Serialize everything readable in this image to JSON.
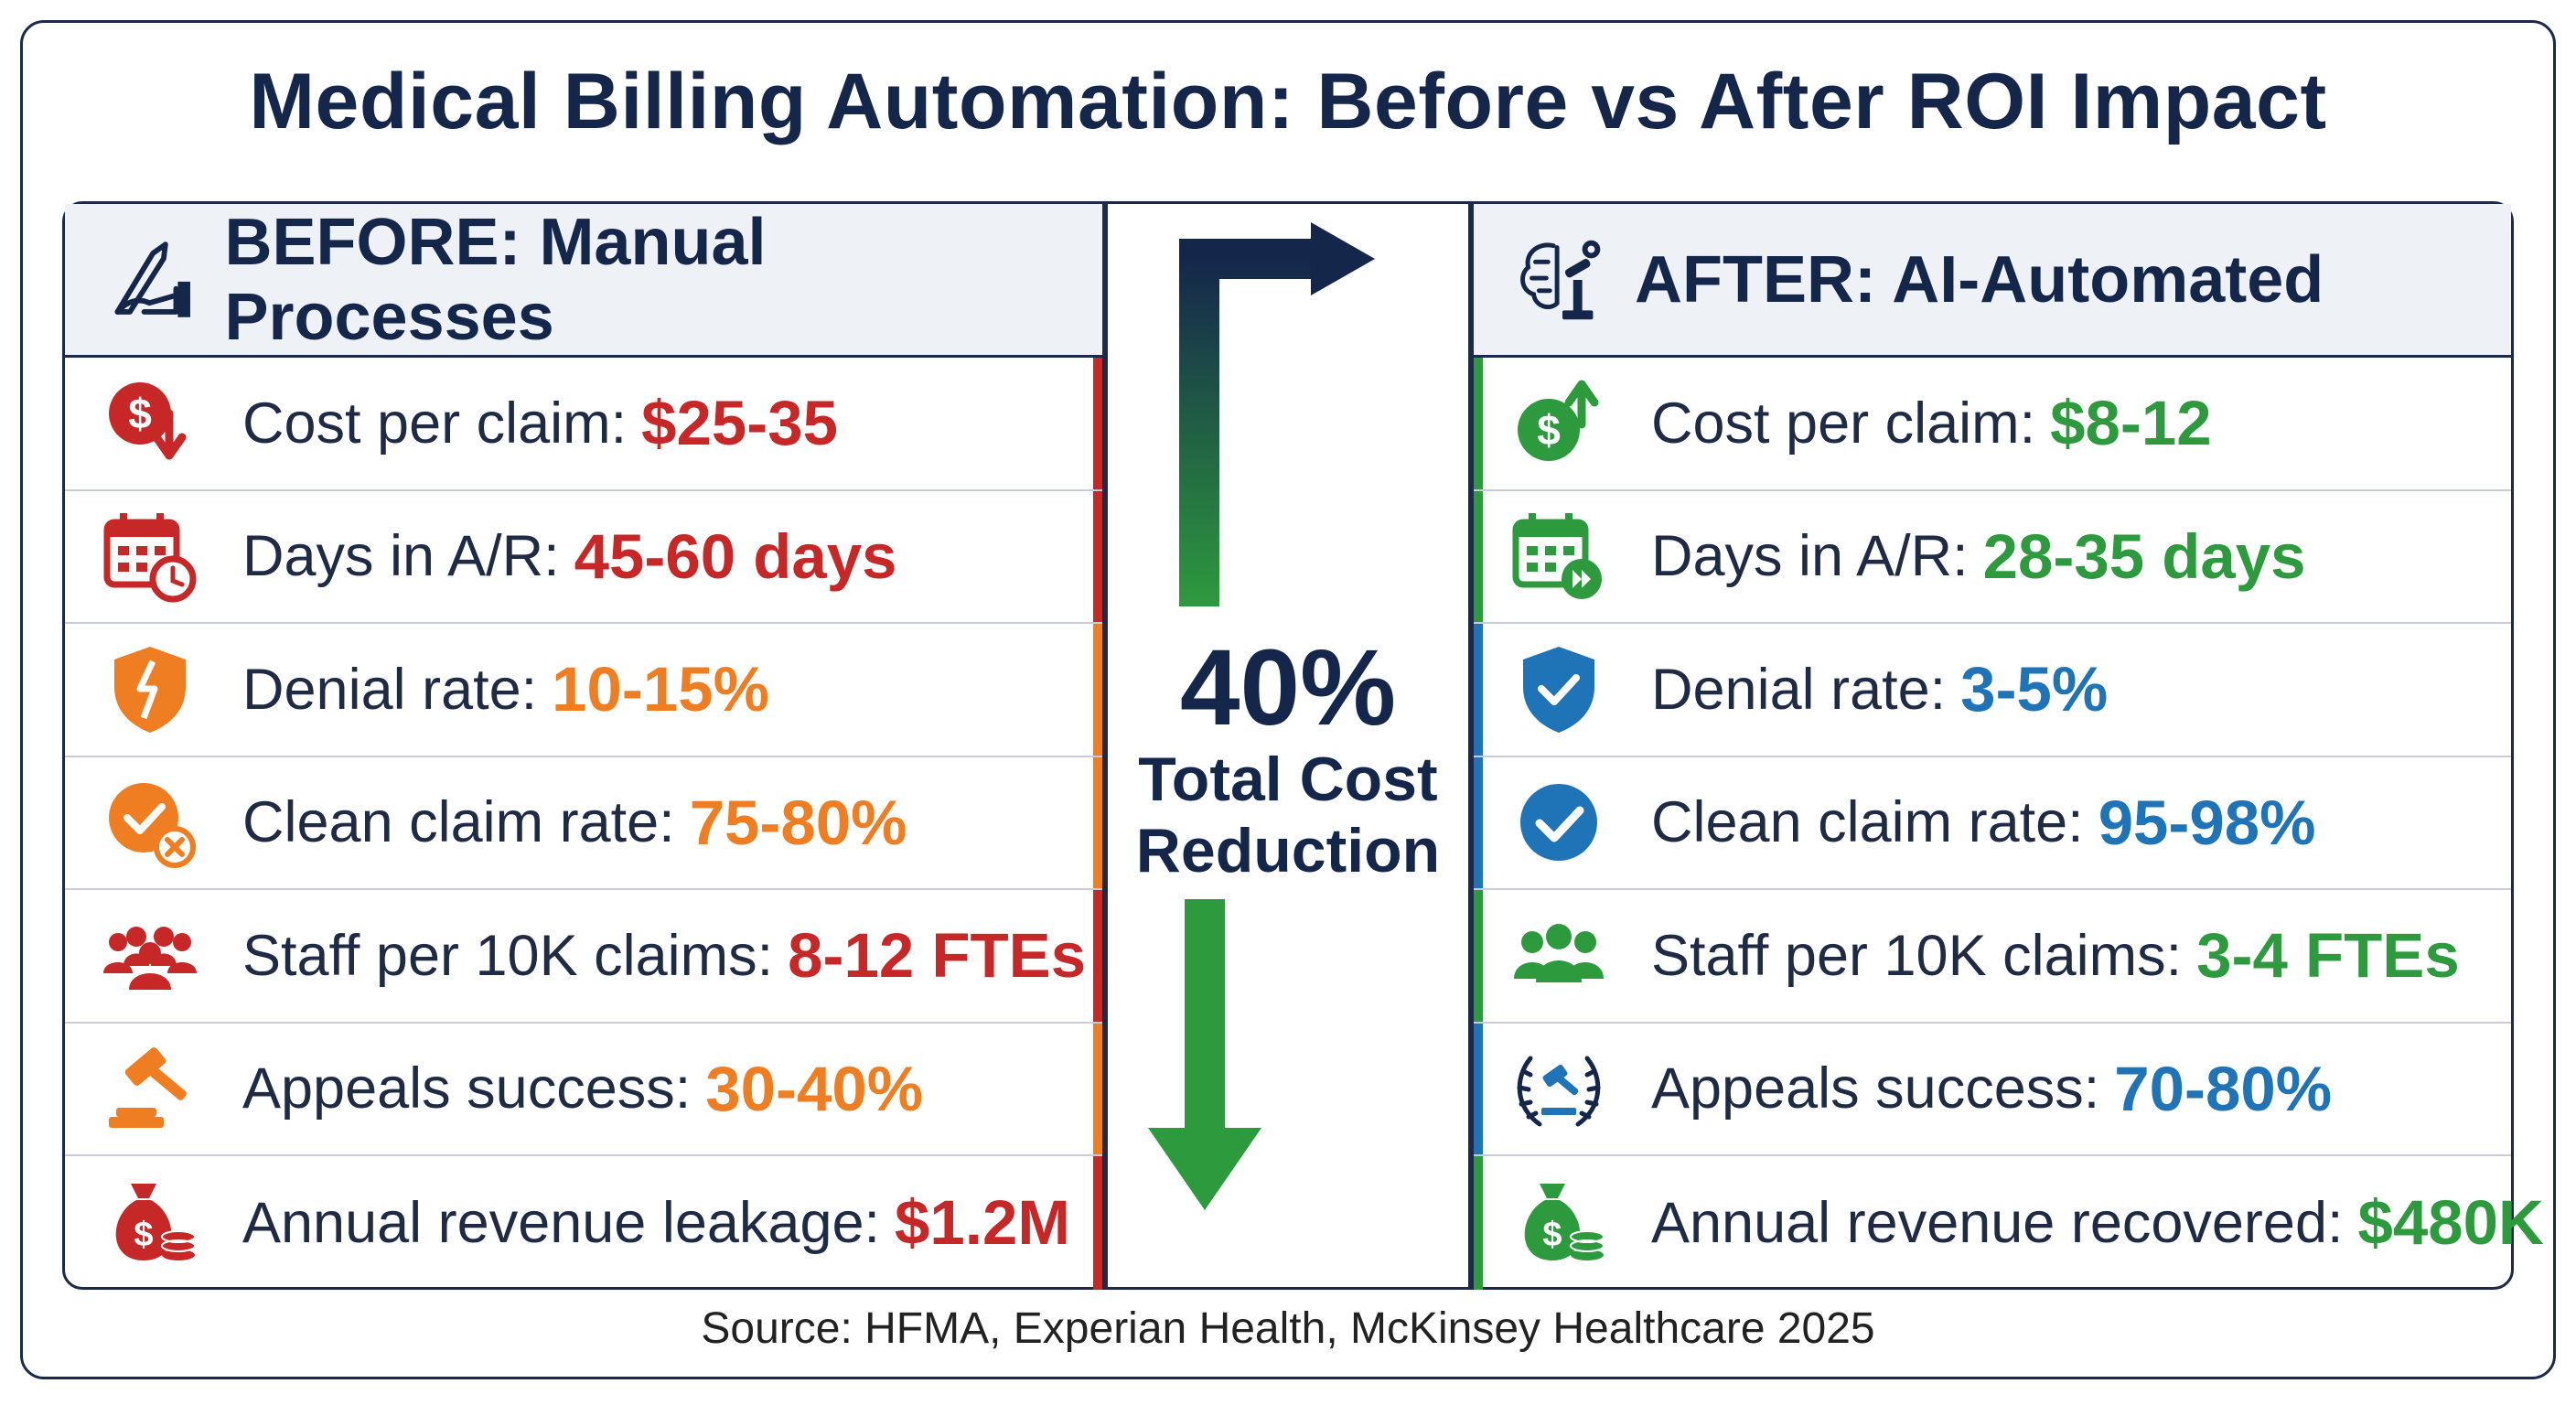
{
  "title": "Medical Billing Automation: Before vs After ROI Impact",
  "source": "Source: HFMA, Experian Health, McKinsey Healthcare 2025",
  "colors": {
    "navy": "#15264b",
    "red": "#c62828",
    "orange": "#ef7d22",
    "green": "#2e9a3e",
    "blue": "#1f73b7"
  },
  "center": {
    "percent": "40%",
    "label_line1": "Total Cost",
    "label_line2": "Reduction"
  },
  "before": {
    "heading": "BEFORE: Manual Processes",
    "icon": "hand-writing-pen-icon",
    "rows": [
      {
        "label": "Cost per claim:",
        "value": "$25-35",
        "color": "red",
        "icon": "dollar-down-icon"
      },
      {
        "label": "Days in A/R:",
        "value": "45-60 days",
        "color": "red",
        "icon": "calendar-clock-icon"
      },
      {
        "label": "Denial rate:",
        "value": "10-15%",
        "color": "orange",
        "icon": "broken-shield-icon"
      },
      {
        "label": "Clean claim rate:",
        "value": "75-80%",
        "color": "orange",
        "icon": "check-x-circle-icon"
      },
      {
        "label": "Staff per 10K claims:",
        "value": "8-12 FTEs",
        "color": "red",
        "icon": "people-group-icon"
      },
      {
        "label": "Appeals success:",
        "value": "30-40%",
        "color": "orange",
        "icon": "gavel-icon"
      },
      {
        "label": "Annual revenue leakage:",
        "value": "$1.2M",
        "color": "red",
        "icon": "money-bag-icon"
      }
    ]
  },
  "after": {
    "heading": "AFTER: AI-Automated",
    "icon": "ai-brain-robot-icon",
    "rows": [
      {
        "label": "Cost per claim:",
        "value": "$8-12",
        "color": "green",
        "icon": "dollar-up-icon"
      },
      {
        "label": "Days in A/R:",
        "value": "28-35 days",
        "color": "green",
        "icon": "calendar-fast-forward-icon"
      },
      {
        "label": "Denial rate:",
        "value": "3-5%",
        "color": "blue",
        "icon": "shield-check-icon"
      },
      {
        "label": "Clean claim rate:",
        "value": "95-98%",
        "color": "blue",
        "icon": "check-circle-icon"
      },
      {
        "label": "Staff per 10K claims:",
        "value": "3-4 FTEs",
        "color": "green",
        "icon": "people-trio-icon"
      },
      {
        "label": "Appeals success:",
        "value": "70-80%",
        "color": "blue",
        "icon": "gavel-laurel-icon"
      },
      {
        "label": "Annual revenue recovered:",
        "value": "$480K",
        "color": "green",
        "icon": "money-bag-icon"
      }
    ]
  }
}
